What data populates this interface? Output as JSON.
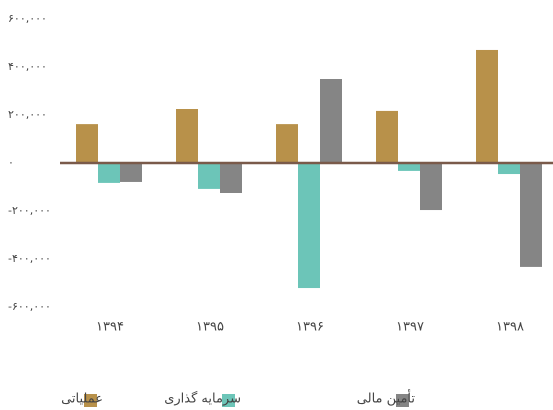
{
  "chart_data": {
    "type": "bar",
    "categories": [
      "۱۳۹۴",
      "۱۳۹۵",
      "۱۳۹۶",
      "۱۳۹۷",
      "۱۳۹۸"
    ],
    "series": [
      {
        "name": "عملیاتی",
        "color": "#b8914a",
        "values": [
          162000,
          225000,
          162000,
          217000,
          471000
        ]
      },
      {
        "name": "سرمایه گذاری",
        "color": "#6cc5b8",
        "values": [
          -83000,
          -108000,
          -521000,
          -33000,
          -46000
        ]
      },
      {
        "name": "تأمین مالی",
        "color": "#858585",
        "values": [
          -79000,
          -125000,
          350000,
          -196000,
          -433000
        ]
      }
    ],
    "ylim": [
      -600000,
      600000
    ],
    "yticks": [
      {
        "value": 600000,
        "label": "۶۰۰,۰۰۰"
      },
      {
        "value": 400000,
        "label": "۴۰۰,۰۰۰"
      },
      {
        "value": 200000,
        "label": "۲۰۰,۰۰۰"
      },
      {
        "value": 0,
        "label": "۰"
      },
      {
        "value": -200000,
        "label": "-۲۰۰,۰۰۰"
      },
      {
        "value": -400000,
        "label": "-۴۰۰,۰۰۰"
      },
      {
        "value": -600000,
        "label": "-۶۰۰,۰۰۰"
      }
    ],
    "grid": false,
    "legend": "bottom"
  }
}
